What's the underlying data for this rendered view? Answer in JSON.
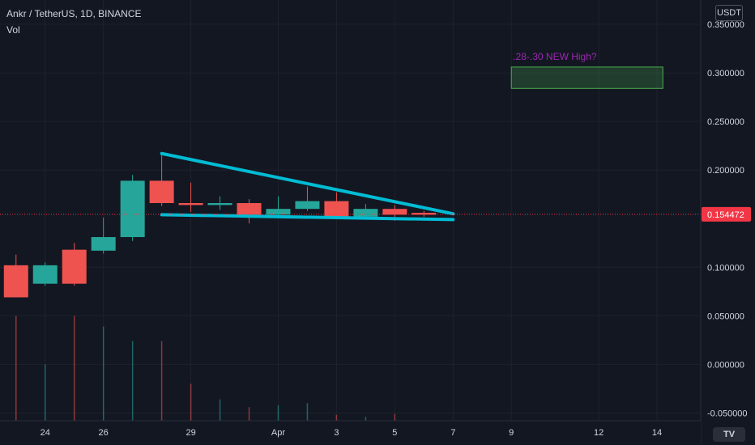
{
  "header": {
    "symbol": "Ankr / TetherUS, 1D, BINANCE",
    "volume_label": "Vol",
    "currency": "USDT"
  },
  "colors": {
    "background": "#131722",
    "grid": "#1e222d",
    "up": "#26a69a",
    "down": "#ef5350",
    "trendline": "#00bcd4",
    "annotation_text": "#9c27b0",
    "annotation_box": "#4caf50",
    "last_price": "#f23645"
  },
  "chart_data": {
    "type": "candlestick",
    "x_ticks": [
      {
        "label": "24",
        "day": 1
      },
      {
        "label": "26",
        "day": 3
      },
      {
        "label": "29",
        "day": 6
      },
      {
        "label": "Apr",
        "day": 9
      },
      {
        "label": "3",
        "day": 11
      },
      {
        "label": "5",
        "day": 13
      },
      {
        "label": "7",
        "day": 15
      },
      {
        "label": "9",
        "day": 17
      },
      {
        "label": "12",
        "day": 20
      },
      {
        "label": "14",
        "day": 22
      }
    ],
    "xlim": [
      -0.55,
      23.5
    ],
    "y_ticks": [
      "0.350000",
      "0.300000",
      "0.250000",
      "0.200000",
      "0.100000",
      "0.050000",
      "0.000000",
      "-0.050000"
    ],
    "y_tick_values": [
      0.35,
      0.3,
      0.25,
      0.2,
      0.1,
      0.05,
      0.0,
      -0.05
    ],
    "ylim": [
      -0.058,
      0.375
    ],
    "candles": [
      {
        "day": 0,
        "open": 0.102,
        "high": 0.113,
        "low": 0.069,
        "close": 0.069
      },
      {
        "day": 1,
        "open": 0.083,
        "high": 0.105,
        "low": 0.081,
        "close": 0.102
      },
      {
        "day": 2,
        "open": 0.118,
        "high": 0.125,
        "low": 0.081,
        "close": 0.083
      },
      {
        "day": 3,
        "open": 0.117,
        "high": 0.151,
        "low": 0.114,
        "close": 0.131
      },
      {
        "day": 4,
        "open": 0.131,
        "high": 0.195,
        "low": 0.127,
        "close": 0.189
      },
      {
        "day": 5,
        "open": 0.189,
        "high": 0.218,
        "low": 0.163,
        "close": 0.166
      },
      {
        "day": 6,
        "open": 0.166,
        "high": 0.187,
        "low": 0.157,
        "close": 0.164
      },
      {
        "day": 7,
        "open": 0.164,
        "high": 0.173,
        "low": 0.159,
        "close": 0.166
      },
      {
        "day": 8,
        "open": 0.166,
        "high": 0.17,
        "low": 0.145,
        "close": 0.154
      },
      {
        "day": 9,
        "open": 0.154,
        "high": 0.173,
        "low": 0.151,
        "close": 0.16
      },
      {
        "day": 10,
        "open": 0.16,
        "high": 0.183,
        "low": 0.158,
        "close": 0.168
      },
      {
        "day": 11,
        "open": 0.168,
        "high": 0.177,
        "low": 0.15,
        "close": 0.152
      },
      {
        "day": 12,
        "open": 0.152,
        "high": 0.165,
        "low": 0.15,
        "close": 0.16
      },
      {
        "day": 13,
        "open": 0.16,
        "high": 0.164,
        "low": 0.148,
        "close": 0.154
      },
      {
        "day": 14,
        "open": 0.156,
        "high": 0.158,
        "low": 0.152,
        "close": 0.154
      }
    ],
    "volume_tops": [
      0.05,
      0.0,
      0.05,
      0.039,
      0.024,
      0.024,
      -0.02,
      -0.036,
      -0.044,
      -0.042,
      -0.04,
      -0.052,
      -0.054,
      -0.051,
      -0.059
    ],
    "volume_base": -0.075,
    "last_price": "0.154472",
    "last_price_value": 0.154472,
    "trendlines": [
      {
        "name": "upper",
        "x1": 5,
        "y1": 0.217,
        "x2": 15,
        "y2": 0.155
      },
      {
        "name": "lower",
        "x1": 5,
        "y1": 0.154,
        "x2": 15,
        "y2": 0.149
      }
    ],
    "annotation": {
      "text": ".28-.30 NEW High?",
      "box_x": [
        17,
        22.2
      ],
      "box_y": [
        0.284,
        0.306
      ]
    }
  }
}
